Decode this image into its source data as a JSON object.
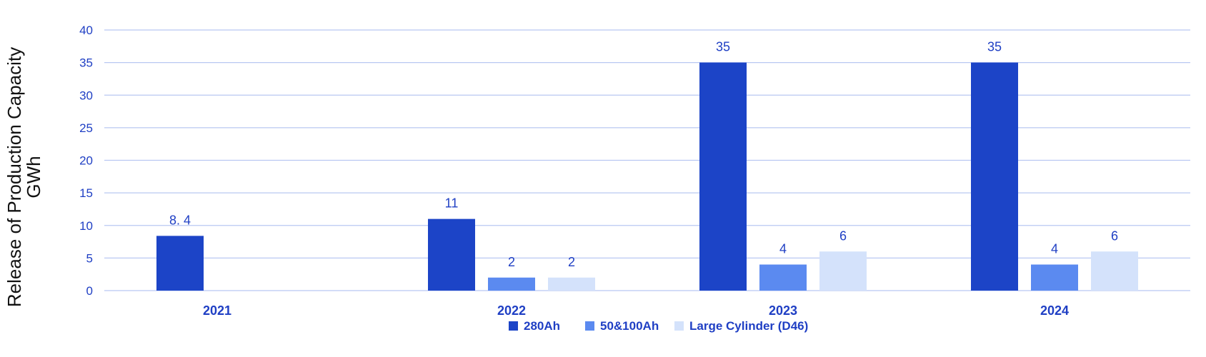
{
  "colors": {
    "axis_text": "#1f3fc4",
    "gridline": "#b9c8f2",
    "title_text": "#111111"
  },
  "chart_data": {
    "type": "bar",
    "categories": [
      "2021",
      "2022",
      "2023",
      "2024"
    ],
    "series": [
      {
        "name": "280Ah",
        "color": "#1c44c7",
        "values": [
          8.4,
          11,
          35,
          35
        ],
        "labels": [
          "8. 4",
          "11",
          "35",
          "35"
        ]
      },
      {
        "name": "50&100Ah",
        "color": "#5b8af0",
        "values": [
          null,
          2,
          4,
          4
        ],
        "labels": [
          "",
          "2",
          "4",
          "4"
        ]
      },
      {
        "name": "Large Cylinder (D46)",
        "color": "#d4e2fb",
        "values": [
          null,
          2,
          6,
          6
        ],
        "labels": [
          "",
          "2",
          "6",
          "6"
        ]
      }
    ],
    "ylabel_lines": [
      "Release of Production Capacity",
      "GWh"
    ],
    "ylim": [
      0,
      40
    ],
    "yticks": [
      0,
      5,
      10,
      15,
      20,
      25,
      30,
      35,
      40
    ],
    "grid": true,
    "legend_position": "bottom"
  }
}
